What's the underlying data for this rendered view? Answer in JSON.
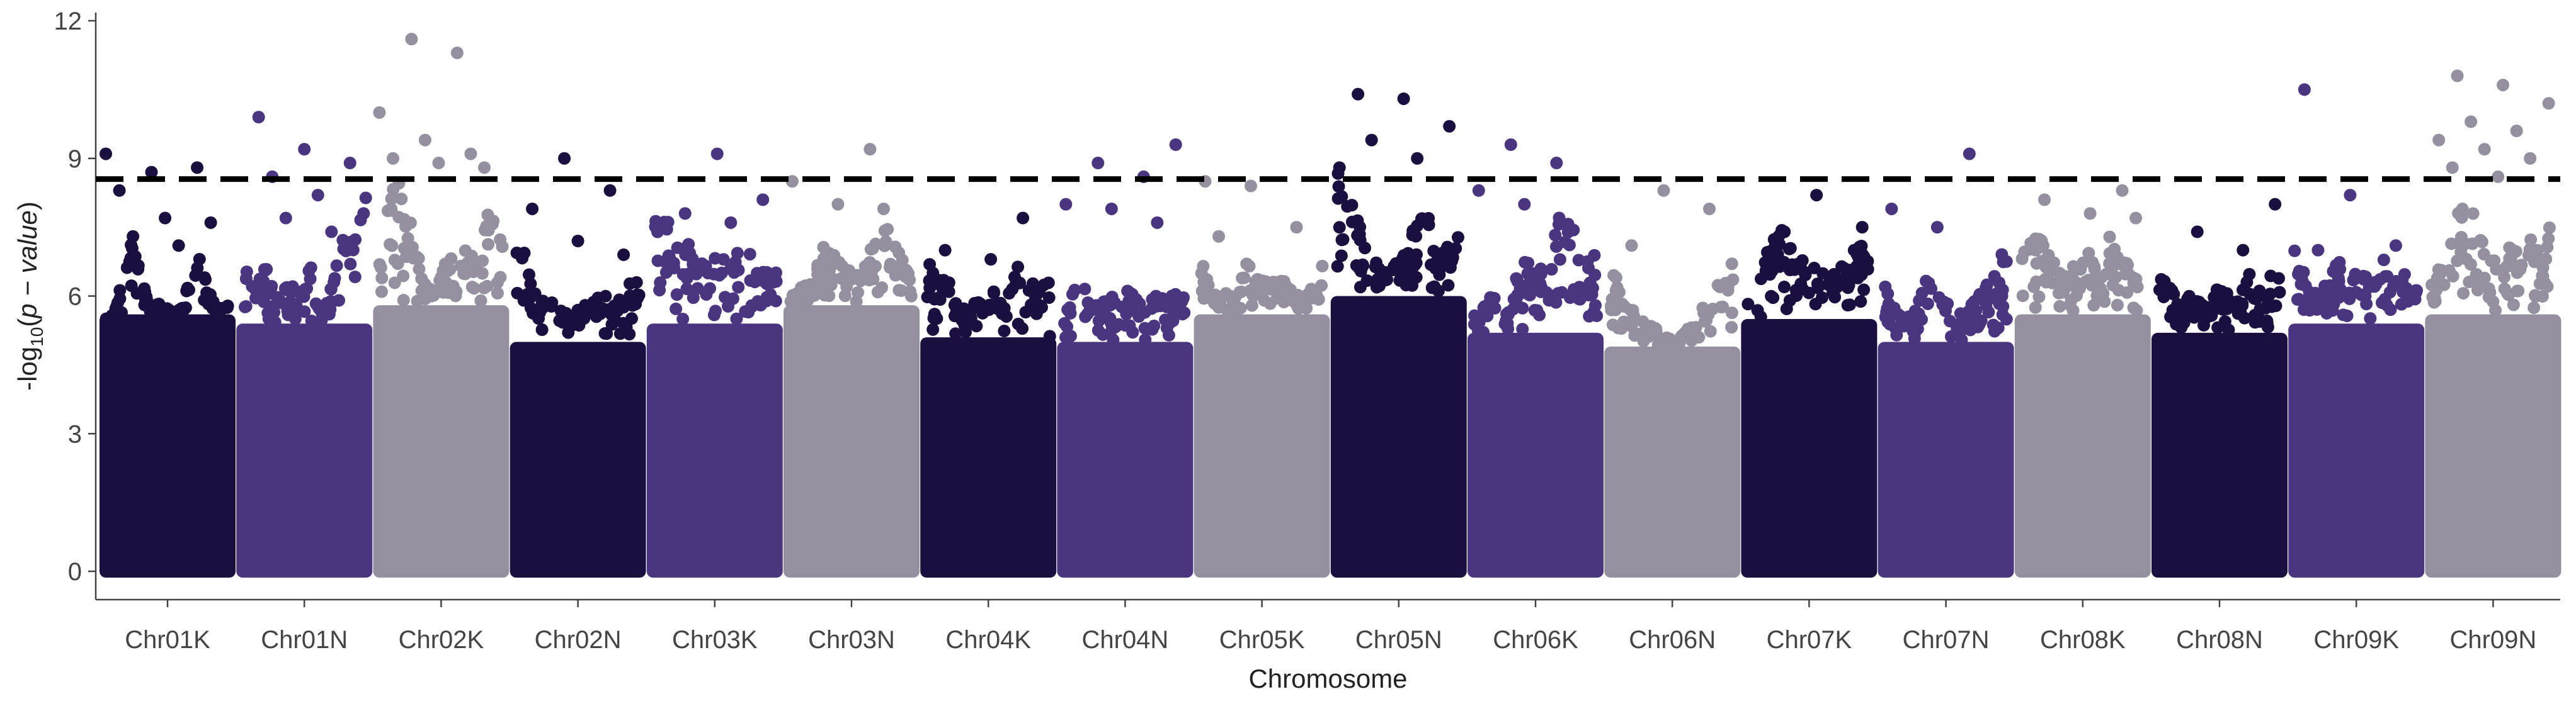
{
  "chart_data": {
    "type": "scatter",
    "subtype": "manhattan",
    "title": "",
    "xlabel": "Chromosome",
    "ylabel": {
      "prefix": "-log",
      "subscript": "10",
      "middle": "(",
      "variable": "p − value",
      "suffix": ")"
    },
    "ylim": [
      0,
      12
    ],
    "yticks": [
      "0",
      "3",
      "6",
      "9",
      "12"
    ],
    "grid": false,
    "legend": "none",
    "threshold": {
      "value": 8.55,
      "style": "dashed",
      "color": "#000000"
    },
    "categories": [
      "Chr01K",
      "Chr01N",
      "Chr02K",
      "Chr02N",
      "Chr03K",
      "Chr03N",
      "Chr04K",
      "Chr04N",
      "Chr05K",
      "Chr05N",
      "Chr06K",
      "Chr06N",
      "Chr07K",
      "Chr07N",
      "Chr08K",
      "Chr08N",
      "Chr09K",
      "Chr09N"
    ],
    "palette": [
      "#1b0f40",
      "#4a3680",
      "#9490a0"
    ],
    "series": [
      {
        "chromosome": "Chr01K",
        "color": "#1b0f40",
        "band_max": 5.6,
        "peak_profile": [
          5.2,
          5.8,
          7.4,
          6.6,
          5.7,
          5.9,
          5.6,
          5.8,
          7.6,
          6.2,
          5.7,
          5.9
        ],
        "top_points": [
          9.1,
          8.7,
          8.8,
          8.3,
          7.7,
          7.6,
          7.3,
          7.1
        ]
      },
      {
        "chromosome": "Chr01N",
        "color": "#4a3680",
        "band_max": 5.4,
        "peak_profile": [
          6.9,
          6.1,
          6.8,
          5.9,
          6.5,
          6.0,
          6.7,
          5.9,
          6.3,
          7.3,
          8.2,
          8.9
        ],
        "top_points": [
          9.9,
          9.2,
          8.9,
          8.6,
          8.2,
          7.8,
          7.7,
          7.4
        ]
      },
      {
        "chromosome": "Chr02K",
        "color": "#9490a0",
        "band_max": 5.8,
        "peak_profile": [
          6.9,
          8.6,
          8.5,
          7.4,
          6.3,
          6.1,
          6.9,
          6.8,
          7.1,
          7.6,
          8.0,
          7.1
        ],
        "top_points": [
          11.6,
          11.3,
          10.0,
          9.4,
          9.1,
          9.0,
          8.9,
          8.8
        ]
      },
      {
        "chromosome": "Chr02N",
        "color": "#1b0f40",
        "band_max": 5.0,
        "peak_profile": [
          7.9,
          6.7,
          5.9,
          5.9,
          5.7,
          5.6,
          5.8,
          6.0,
          6.0,
          5.9,
          6.4,
          6.3
        ],
        "top_points": [
          9.0,
          8.3,
          7.9,
          7.2,
          6.9
        ]
      },
      {
        "chromosome": "Chr03K",
        "color": "#4a3680",
        "band_max": 5.4,
        "peak_profile": [
          8.0,
          7.7,
          7.5,
          7.3,
          7.1,
          6.8,
          7.0,
          6.7,
          7.2,
          6.9,
          6.5,
          6.6
        ],
        "top_points": [
          9.1,
          8.1,
          7.8,
          7.6
        ]
      },
      {
        "chromosome": "Chr03N",
        "color": "#9490a0",
        "band_max": 5.8,
        "peak_profile": [
          6.0,
          6.2,
          6.3,
          7.1,
          6.9,
          6.6,
          6.5,
          6.9,
          7.8,
          7.4,
          6.8,
          6.4
        ],
        "top_points": [
          9.2,
          8.5,
          8.0,
          7.9
        ]
      },
      {
        "chromosome": "Chr04K",
        "color": "#1b0f40",
        "band_max": 5.1,
        "peak_profile": [
          7.0,
          6.4,
          6.3,
          5.9,
          6.1,
          5.8,
          6.1,
          5.8,
          6.7,
          6.4,
          6.2,
          6.4
        ],
        "top_points": [
          7.7,
          7.0,
          6.8
        ]
      },
      {
        "chromosome": "Chr04N",
        "color": "#4a3680",
        "band_max": 5.0,
        "peak_profile": [
          5.4,
          6.2,
          6.3,
          6.0,
          5.9,
          6.3,
          6.1,
          5.8,
          6.3,
          5.9,
          6.2,
          5.9
        ],
        "top_points": [
          9.3,
          8.9,
          8.6,
          8.0,
          7.9,
          7.6
        ]
      },
      {
        "chromosome": "Chr05K",
        "color": "#9490a0",
        "band_max": 5.6,
        "peak_profile": [
          6.9,
          6.0,
          6.2,
          6.0,
          6.8,
          6.4,
          6.3,
          6.5,
          6.2,
          6.0,
          6.3,
          7.0
        ],
        "top_points": [
          8.5,
          8.4,
          7.5,
          7.3
        ]
      },
      {
        "chromosome": "Chr05N",
        "color": "#1b0f40",
        "band_max": 6.0,
        "peak_profile": [
          8.8,
          8.3,
          7.6,
          7.0,
          6.6,
          6.7,
          6.9,
          7.6,
          7.9,
          6.8,
          7.2,
          7.5
        ],
        "top_points": [
          10.4,
          10.3,
          9.7,
          9.4,
          9.0,
          8.8
        ]
      },
      {
        "chromosome": "Chr06K",
        "color": "#4a3680",
        "band_max": 5.2,
        "peak_profile": [
          5.6,
          5.8,
          6.2,
          5.6,
          6.6,
          6.9,
          6.6,
          7.3,
          8.0,
          7.4,
          6.9,
          7.2
        ],
        "top_points": [
          9.3,
          8.9,
          8.3,
          8.0
        ]
      },
      {
        "chromosome": "Chr06N",
        "color": "#9490a0",
        "band_max": 4.9,
        "peak_profile": [
          6.6,
          6.2,
          5.8,
          5.5,
          5.3,
          5.1,
          5.0,
          5.4,
          5.8,
          5.6,
          6.9,
          7.1
        ],
        "top_points": [
          8.3,
          7.9,
          7.1
        ]
      },
      {
        "chromosome": "Chr07K",
        "color": "#1b0f40",
        "band_max": 5.5,
        "peak_profile": [
          6.0,
          6.2,
          7.2,
          7.5,
          7.0,
          6.8,
          7.1,
          6.8,
          6.5,
          6.9,
          7.2,
          6.6
        ],
        "top_points": [
          8.2,
          7.5,
          7.4
        ]
      },
      {
        "chromosome": "Chr07N",
        "color": "#4a3680",
        "band_max": 5.0,
        "peak_profile": [
          6.3,
          5.7,
          5.5,
          5.9,
          6.5,
          6.0,
          5.8,
          5.6,
          5.9,
          6.2,
          6.8,
          7.6
        ],
        "top_points": [
          9.1,
          7.9,
          7.5
        ]
      },
      {
        "chromosome": "Chr08K",
        "color": "#9490a0",
        "band_max": 5.6,
        "peak_profile": [
          6.8,
          7.4,
          7.2,
          6.7,
          6.4,
          6.8,
          7.0,
          6.4,
          7.6,
          6.8,
          6.6,
          6.4
        ],
        "top_points": [
          8.3,
          8.1,
          7.8,
          7.7
        ]
      },
      {
        "chromosome": "Chr08N",
        "color": "#1b0f40",
        "band_max": 5.2,
        "peak_profile": [
          6.5,
          6.3,
          5.7,
          6.1,
          5.8,
          6.1,
          6.3,
          5.8,
          6.8,
          6.1,
          6.4,
          7.4
        ],
        "top_points": [
          8.0,
          7.4,
          7.0
        ]
      },
      {
        "chromosome": "Chr09K",
        "color": "#4a3680",
        "band_max": 5.4,
        "peak_profile": [
          7.5,
          6.3,
          6.1,
          6.4,
          6.8,
          6.5,
          6.6,
          6.3,
          7.0,
          6.4,
          6.6,
          6.2
        ],
        "top_points": [
          10.5,
          8.2,
          7.1,
          7.0
        ]
      },
      {
        "chromosome": "Chr09N",
        "color": "#9490a0",
        "band_max": 5.6,
        "peak_profile": [
          6.3,
          6.8,
          7.3,
          8.6,
          7.6,
          7.0,
          6.9,
          7.2,
          6.8,
          7.4,
          7.0,
          8.0
        ],
        "top_points": [
          10.8,
          10.6,
          10.2,
          9.8,
          9.6,
          9.4,
          9.2,
          9.0,
          8.8,
          8.6
        ]
      }
    ]
  }
}
